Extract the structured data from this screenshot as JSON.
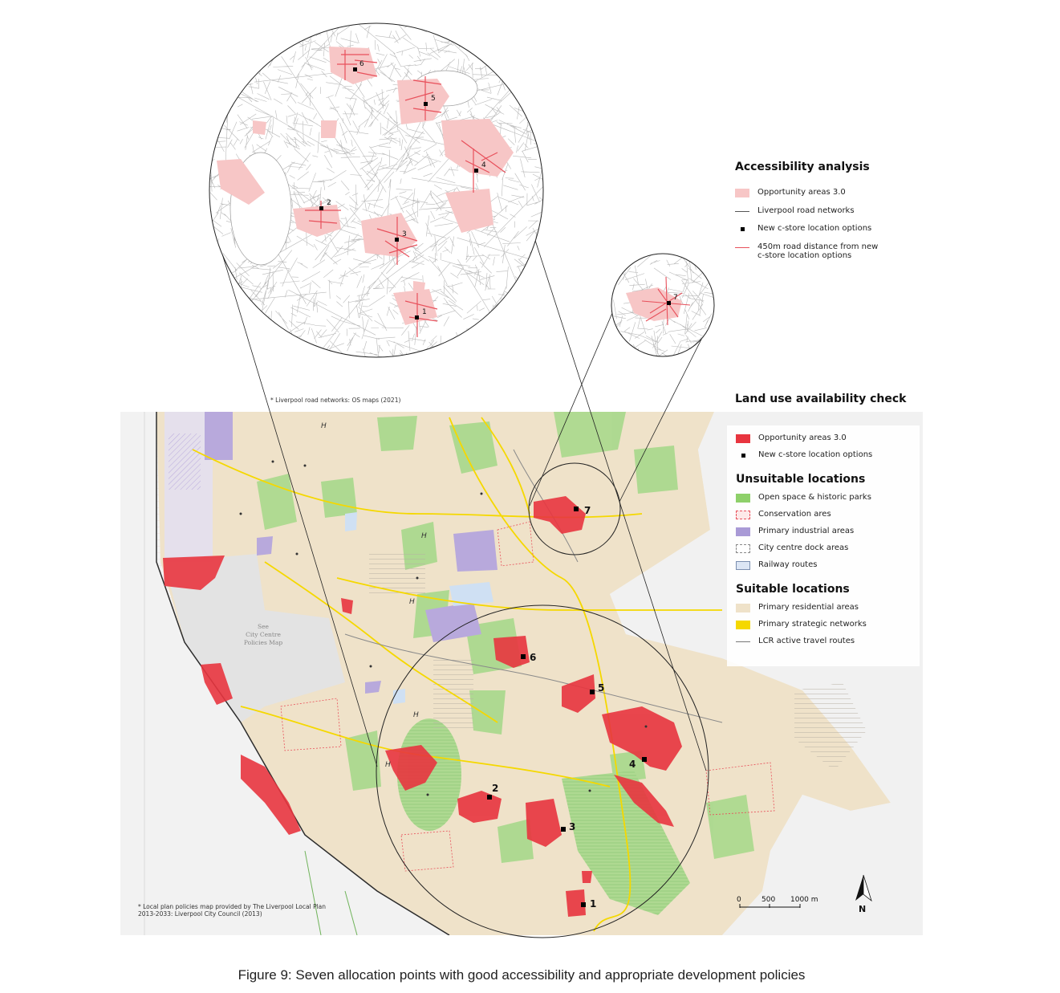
{
  "accessibility": {
    "title": "Accessibility analysis",
    "items": [
      {
        "label": "Opportunity areas 3.0",
        "color": "#f7c6c6"
      },
      {
        "label": "Liverpool road networks",
        "color": "#555555"
      },
      {
        "label": "New c-store location options",
        "color": "#000000"
      },
      {
        "label_line1": "450m road distance from new",
        "label_line2": "c-store location options",
        "color": "#e8505b"
      }
    ],
    "footnote": "* Liverpool road networks: OS maps (2021)"
  },
  "landuse": {
    "title": "Land use availability check",
    "items": [
      {
        "label": "Opportunity areas 3.0",
        "color": "#e8353f"
      },
      {
        "label": "New c-store location options",
        "color": "#000000"
      }
    ],
    "unsuitable_title": "Unsuitable locations",
    "unsuitable": [
      {
        "label": "Open space & historic parks",
        "color": "#8ed06a"
      },
      {
        "label": "Conservation ares",
        "color": "#e8505b"
      },
      {
        "label": "Primary industrial areas",
        "color": "#a99ad6"
      },
      {
        "label": "City centre dock areas",
        "color": "#888888"
      },
      {
        "label": "Railway routes",
        "color": "#dce6f5"
      }
    ],
    "suitable_title": "Suitable locations",
    "suitable": [
      {
        "label": "Primary residential areas",
        "color": "#efe2c9"
      },
      {
        "label": "Primary strategic networks",
        "color": "#f5d800"
      },
      {
        "label": "LCR active travel routes",
        "color": "#777777"
      }
    ],
    "footnote_line1": "* Local plan policies map provided by The Liverpool Local Plan",
    "footnote_line2": "2013-2033: Liverpool City Council (2013)"
  },
  "map": {
    "city_centre_label_line1": "See",
    "city_centre_label_line2": "City Centre",
    "city_centre_label_line3": "Policies Map",
    "heritage_marker": "H",
    "scale_labels": [
      "0",
      "500",
      "1000 m"
    ],
    "north": "N",
    "sites": [
      "1",
      "2",
      "3",
      "4",
      "5",
      "6",
      "7"
    ]
  },
  "caption": "Figure 9: Seven allocation points with good accessibility and appropriate development policies"
}
